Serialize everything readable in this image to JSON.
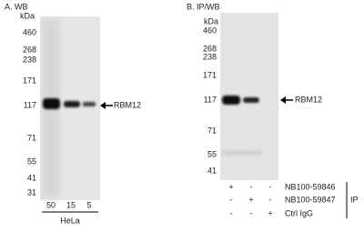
{
  "panels": [
    {
      "label": "A. WB",
      "unit": "kDa",
      "markers": [
        "460",
        "268",
        "238",
        "171",
        "117",
        "71",
        "55",
        "41",
        "31"
      ],
      "lanes": [
        "50",
        "15",
        "5"
      ],
      "sample": "HeLa",
      "target": "RBM12"
    },
    {
      "label": "B. IP/WB",
      "unit": "kDa",
      "markers": [
        "460",
        "268",
        "238",
        "171",
        "117",
        "71",
        "55",
        "41"
      ],
      "target": "RBM12",
      "ip_rows": [
        {
          "name": "NB100-59846",
          "signs": [
            "+",
            "-",
            "-"
          ]
        },
        {
          "name": "NB100-59847",
          "signs": [
            "-",
            "+",
            "-"
          ]
        },
        {
          "name": "Ctrl IgG",
          "signs": [
            "-",
            "-",
            "+"
          ]
        }
      ],
      "ip_label": "IP"
    }
  ]
}
